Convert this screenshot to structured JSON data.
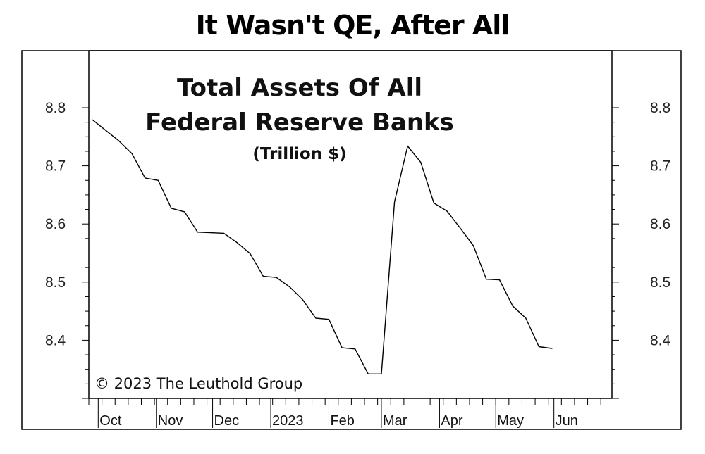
{
  "chart_data": {
    "type": "line",
    "title": "It Wasn't QE, After All",
    "subtitle_lines": [
      "Total Assets Of All",
      "Federal Reserve Banks"
    ],
    "unit": "(Trillion $)",
    "copyright": "© 2023 The Leuthold Group",
    "x_tick_labels": [
      "Oct",
      "Nov",
      "Dec",
      "2023",
      "Feb",
      "Mar",
      "Apr",
      "May",
      "Jun"
    ],
    "ylim": [
      8.3,
      8.8
    ],
    "y_ticks": [
      8.4,
      8.5,
      8.6,
      8.7,
      8.8
    ],
    "y_tick_labels": [
      "8.4",
      "8.5",
      "8.6",
      "8.7",
      "8.8"
    ],
    "grid": false,
    "series": [
      {
        "x": [
          "2022-09-28",
          "2022-10-05",
          "2022-10-12",
          "2022-10-19",
          "2022-10-26",
          "2022-11-02",
          "2022-11-09",
          "2022-11-16",
          "2022-11-23",
          "2022-11-30",
          "2022-12-07",
          "2022-12-14",
          "2022-12-21",
          "2022-12-28",
          "2023-01-04",
          "2023-01-11",
          "2023-01-18",
          "2023-01-25",
          "2023-02-01",
          "2023-02-08",
          "2023-02-15",
          "2023-02-22",
          "2023-03-01",
          "2023-03-08",
          "2023-03-15",
          "2023-03-22",
          "2023-03-29",
          "2023-04-05",
          "2023-04-12",
          "2023-04-19",
          "2023-04-26",
          "2023-05-03",
          "2023-05-10",
          "2023-05-17",
          "2023-05-24",
          "2023-05-31"
        ],
        "y": [
          8.779,
          8.761,
          8.743,
          8.721,
          8.679,
          8.675,
          8.627,
          8.621,
          8.586,
          8.585,
          8.584,
          8.568,
          8.549,
          8.51,
          8.508,
          8.492,
          8.47,
          8.438,
          8.436,
          8.387,
          8.385,
          8.342,
          8.342,
          8.638,
          8.734,
          8.706,
          8.636,
          8.622,
          8.593,
          8.563,
          8.505,
          8.504,
          8.459,
          8.438,
          8.389,
          8.386
        ]
      }
    ]
  }
}
